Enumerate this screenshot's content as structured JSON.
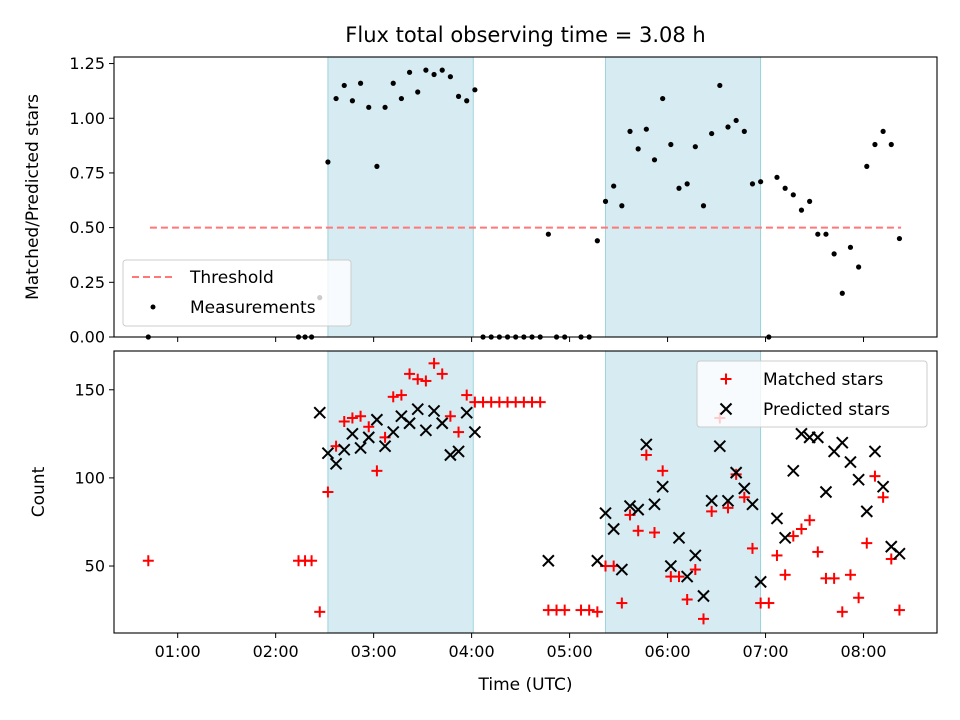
{
  "chart_data": [
    {
      "type": "scatter",
      "title": "Flux total observing time = 3.08 h",
      "ylabel": "Matched/Predicted stars",
      "xlabel": "",
      "x_unit": "hours UTC",
      "xlim": [
        "00:21",
        "08:45"
      ],
      "ylim": [
        0,
        1.28
      ],
      "yticks": [
        "0.00",
        "0.25",
        "0.50",
        "0.75",
        "1.00",
        "1.25"
      ],
      "shaded_intervals": [
        [
          "02:32",
          "04:01"
        ],
        [
          "05:22",
          "06:57"
        ]
      ],
      "threshold": {
        "name": "Threshold",
        "y": 0.5,
        "x_range": [
          "00:43",
          "08:23"
        ],
        "color": "#ff7777"
      },
      "series": [
        {
          "name": "Measurements",
          "color": "#000000",
          "points": [
            [
              "00:42",
              0.0
            ],
            [
              "02:14",
              0.0
            ],
            [
              "02:18",
              0.0
            ],
            [
              "02:22",
              0.0
            ],
            [
              "02:27",
              0.18
            ],
            [
              "02:32",
              0.8
            ],
            [
              "02:37",
              1.09
            ],
            [
              "02:42",
              1.15
            ],
            [
              "02:47",
              1.08
            ],
            [
              "02:52",
              1.16
            ],
            [
              "02:57",
              1.05
            ],
            [
              "03:02",
              0.78
            ],
            [
              "03:07",
              1.05
            ],
            [
              "03:12",
              1.16
            ],
            [
              "03:17",
              1.09
            ],
            [
              "03:22",
              1.21
            ],
            [
              "03:27",
              1.12
            ],
            [
              "03:32",
              1.22
            ],
            [
              "03:37",
              1.2
            ],
            [
              "03:42",
              1.22
            ],
            [
              "03:47",
              1.19
            ],
            [
              "03:52",
              1.1
            ],
            [
              "03:57",
              1.08
            ],
            [
              "04:02",
              1.13
            ],
            [
              "04:07",
              0.0
            ],
            [
              "04:12",
              0.0
            ],
            [
              "04:17",
              0.0
            ],
            [
              "04:22",
              0.0
            ],
            [
              "04:27",
              0.0
            ],
            [
              "04:32",
              0.0
            ],
            [
              "04:37",
              0.0
            ],
            [
              "04:42",
              0.0
            ],
            [
              "04:47",
              0.47
            ],
            [
              "04:52",
              0.0
            ],
            [
              "04:57",
              0.0
            ],
            [
              "05:07",
              0.0
            ],
            [
              "05:12",
              0.0
            ],
            [
              "05:17",
              0.44
            ],
            [
              "05:22",
              0.62
            ],
            [
              "05:27",
              0.69
            ],
            [
              "05:32",
              0.6
            ],
            [
              "05:37",
              0.94
            ],
            [
              "05:42",
              0.86
            ],
            [
              "05:47",
              0.95
            ],
            [
              "05:52",
              0.81
            ],
            [
              "05:57",
              1.09
            ],
            [
              "06:02",
              0.88
            ],
            [
              "06:07",
              0.68
            ],
            [
              "06:12",
              0.7
            ],
            [
              "06:17",
              0.87
            ],
            [
              "06:22",
              0.6
            ],
            [
              "06:27",
              0.93
            ],
            [
              "06:32",
              1.15
            ],
            [
              "06:37",
              0.96
            ],
            [
              "06:42",
              0.99
            ],
            [
              "06:47",
              0.94
            ],
            [
              "06:52",
              0.7
            ],
            [
              "06:57",
              0.71
            ],
            [
              "07:02",
              0.0
            ],
            [
              "07:07",
              0.73
            ],
            [
              "07:12",
              0.68
            ],
            [
              "07:17",
              0.65
            ],
            [
              "07:22",
              0.58
            ],
            [
              "07:27",
              0.62
            ],
            [
              "07:32",
              0.47
            ],
            [
              "07:37",
              0.47
            ],
            [
              "07:42",
              0.38
            ],
            [
              "07:47",
              0.2
            ],
            [
              "07:52",
              0.41
            ],
            [
              "07:57",
              0.32
            ],
            [
              "08:02",
              0.78
            ],
            [
              "08:07",
              0.88
            ],
            [
              "08:12",
              0.94
            ],
            [
              "08:17",
              0.88
            ],
            [
              "08:22",
              0.45
            ]
          ]
        }
      ],
      "legend": {
        "placement": "lower-left",
        "entries": [
          "Threshold",
          "Measurements"
        ]
      }
    },
    {
      "type": "scatter",
      "title": "",
      "xlabel": "Time (UTC)",
      "ylabel": "Count",
      "xticks": [
        "01:00",
        "02:00",
        "03:00",
        "04:00",
        "05:00",
        "06:00",
        "07:00",
        "08:00"
      ],
      "xlim": [
        "00:21",
        "08:45"
      ],
      "ylim": [
        12,
        172
      ],
      "yticks": [
        "50",
        "100",
        "150"
      ],
      "shaded_intervals": [
        [
          "02:32",
          "04:01"
        ],
        [
          "05:22",
          "06:57"
        ]
      ],
      "series": [
        {
          "name": "Matched stars",
          "marker": "+",
          "color": "#ff0000",
          "points": [
            [
              "00:42",
              53
            ],
            [
              "02:14",
              53
            ],
            [
              "02:18",
              53
            ],
            [
              "02:22",
              53
            ],
            [
              "02:27",
              24
            ],
            [
              "02:32",
              92
            ],
            [
              "02:37",
              118
            ],
            [
              "02:42",
              132
            ],
            [
              "02:47",
              134
            ],
            [
              "02:52",
              135
            ],
            [
              "02:57",
              129
            ],
            [
              "03:02",
              104
            ],
            [
              "03:07",
              123
            ],
            [
              "03:12",
              146
            ],
            [
              "03:17",
              147
            ],
            [
              "03:22",
              159
            ],
            [
              "03:27",
              156
            ],
            [
              "03:32",
              155
            ],
            [
              "03:37",
              165
            ],
            [
              "03:42",
              159
            ],
            [
              "03:47",
              135
            ],
            [
              "03:52",
              126
            ],
            [
              "03:57",
              147
            ],
            [
              "04:02",
              143
            ],
            [
              "04:07",
              143
            ],
            [
              "04:12",
              143
            ],
            [
              "04:17",
              143
            ],
            [
              "04:22",
              143
            ],
            [
              "04:27",
              143
            ],
            [
              "04:32",
              143
            ],
            [
              "04:37",
              143
            ],
            [
              "04:42",
              143
            ],
            [
              "04:47",
              25
            ],
            [
              "04:52",
              25
            ],
            [
              "04:57",
              25
            ],
            [
              "05:07",
              25
            ],
            [
              "05:12",
              25
            ],
            [
              "05:17",
              24
            ],
            [
              "05:22",
              50
            ],
            [
              "05:27",
              50
            ],
            [
              "05:32",
              29
            ],
            [
              "05:37",
              79
            ],
            [
              "05:42",
              70
            ],
            [
              "05:47",
              113
            ],
            [
              "05:52",
              69
            ],
            [
              "05:57",
              104
            ],
            [
              "06:02",
              44
            ],
            [
              "06:07",
              44
            ],
            [
              "06:12",
              31
            ],
            [
              "06:17",
              48
            ],
            [
              "06:22",
              20
            ],
            [
              "06:27",
              81
            ],
            [
              "06:32",
              134
            ],
            [
              "06:37",
              83
            ],
            [
              "06:42",
              102
            ],
            [
              "06:47",
              89
            ],
            [
              "06:52",
              60
            ],
            [
              "06:57",
              29
            ],
            [
              "07:02",
              29
            ],
            [
              "07:07",
              56
            ],
            [
              "07:12",
              45
            ],
            [
              "07:17",
              67
            ],
            [
              "07:22",
              71
            ],
            [
              "07:27",
              76
            ],
            [
              "07:32",
              58
            ],
            [
              "07:37",
              43
            ],
            [
              "07:42",
              43
            ],
            [
              "07:47",
              24
            ],
            [
              "07:52",
              45
            ],
            [
              "07:57",
              32
            ],
            [
              "08:02",
              63
            ],
            [
              "08:07",
              101
            ],
            [
              "08:12",
              89
            ],
            [
              "08:17",
              54
            ],
            [
              "08:22",
              25
            ]
          ]
        },
        {
          "name": "Predicted stars",
          "marker": "x",
          "color": "#000000",
          "points": [
            [
              "02:27",
              137
            ],
            [
              "02:32",
              114
            ],
            [
              "02:37",
              108
            ],
            [
              "02:42",
              116
            ],
            [
              "02:47",
              125
            ],
            [
              "02:52",
              117
            ],
            [
              "02:57",
              123
            ],
            [
              "03:02",
              133
            ],
            [
              "03:07",
              118
            ],
            [
              "03:12",
              126
            ],
            [
              "03:17",
              135
            ],
            [
              "03:22",
              131
            ],
            [
              "03:27",
              139
            ],
            [
              "03:32",
              127
            ],
            [
              "03:37",
              138
            ],
            [
              "03:42",
              131
            ],
            [
              "03:47",
              113
            ],
            [
              "03:52",
              115
            ],
            [
              "03:57",
              137
            ],
            [
              "04:02",
              126
            ],
            [
              "04:47",
              53
            ],
            [
              "05:17",
              53
            ],
            [
              "05:22",
              80
            ],
            [
              "05:27",
              71
            ],
            [
              "05:32",
              48
            ],
            [
              "05:37",
              84
            ],
            [
              "05:42",
              82
            ],
            [
              "05:47",
              119
            ],
            [
              "05:52",
              85
            ],
            [
              "05:57",
              95
            ],
            [
              "06:02",
              50
            ],
            [
              "06:07",
              66
            ],
            [
              "06:12",
              44
            ],
            [
              "06:17",
              56
            ],
            [
              "06:22",
              33
            ],
            [
              "06:27",
              87
            ],
            [
              "06:32",
              118
            ],
            [
              "06:37",
              87
            ],
            [
              "06:42",
              103
            ],
            [
              "06:47",
              94
            ],
            [
              "06:52",
              85
            ],
            [
              "06:57",
              41
            ],
            [
              "07:07",
              77
            ],
            [
              "07:12",
              66
            ],
            [
              "07:17",
              104
            ],
            [
              "07:22",
              125
            ],
            [
              "07:27",
              123
            ],
            [
              "07:32",
              123
            ],
            [
              "07:37",
              92
            ],
            [
              "07:42",
              115
            ],
            [
              "07:47",
              120
            ],
            [
              "07:52",
              109
            ],
            [
              "07:57",
              99
            ],
            [
              "08:02",
              81
            ],
            [
              "08:07",
              115
            ],
            [
              "08:12",
              95
            ],
            [
              "08:17",
              61
            ],
            [
              "08:22",
              57
            ]
          ]
        }
      ],
      "legend": {
        "placement": "top-right",
        "entries": [
          "Matched stars",
          "Predicted stars"
        ]
      }
    }
  ]
}
